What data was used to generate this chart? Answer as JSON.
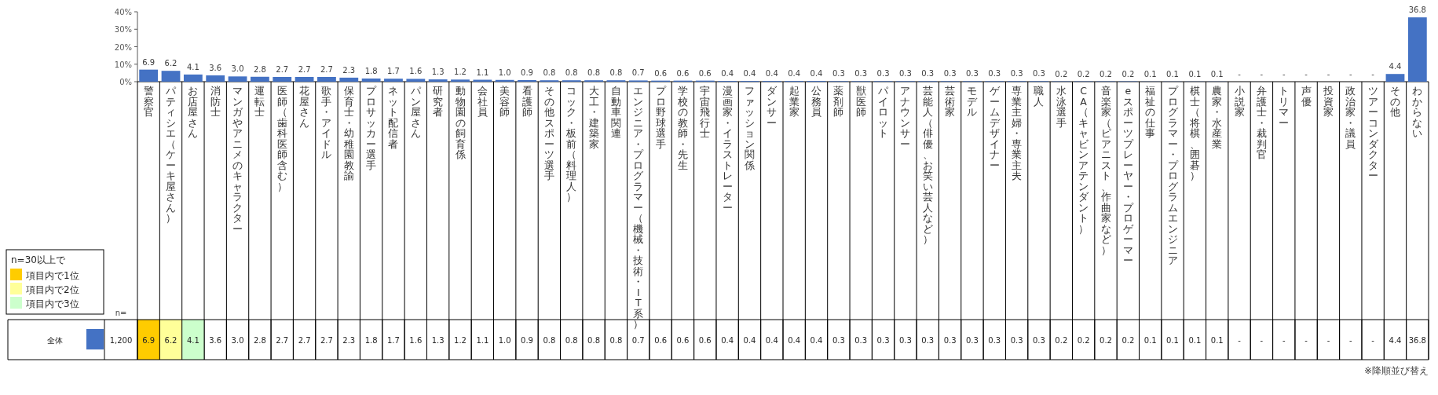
{
  "chart_data": {
    "type": "bar",
    "ylim": [
      0,
      40
    ],
    "yticks": [
      {
        "value": 0,
        "label": "0%"
      },
      {
        "value": 10,
        "label": "10%"
      },
      {
        "value": 20,
        "label": "20%"
      },
      {
        "value": 30,
        "label": "30%"
      },
      {
        "value": 40,
        "label": "40%"
      }
    ],
    "grid": false,
    "legend": "bottom left",
    "legend_title": "n=30以上で",
    "categories": [
      "警察官",
      "パティシエ（ケーキ屋さん）",
      "お店屋さん",
      "消防士",
      "マンガやアニメのキャラクター",
      "運転士",
      "医師（歯科医師含む）",
      "花屋さん",
      "歌手・アイドル",
      "保育士・幼稚園教諭",
      "プロサッカー選手",
      "ネット配信者",
      "パン屋さん",
      "研究者",
      "動物園の飼育係",
      "会社員",
      "美容師",
      "看護師",
      "その他スポーツ選手",
      "コック・板前（料理人）",
      "大工・建築家",
      "自動車関連",
      "エンジニア・プログラマー（機械・技術・IT系）",
      "プロ野球選手",
      "学校の教師・先生",
      "宇宙飛行士",
      "漫画家・イラストレーター",
      "ファッション関係",
      "ダンサー",
      "起業家",
      "公務員",
      "薬剤師",
      "獣医師",
      "パイロット",
      "アナウンサー",
      "芸能人（俳優、お笑い芸人など）",
      "芸術家",
      "モデル",
      "ゲームデザイナー",
      "専業主婦・専業主夫",
      "職人",
      "水泳選手",
      "CA（キャビンアテンダント）",
      "音楽家（ピアニスト、作曲家など）",
      "eスポーツプレーヤー・プロゲーマー",
      "福祉の仕事",
      "プログラマー・プログラムエンジニア",
      "棋士（将棋、囲碁）",
      "農家・水産業",
      "小説家",
      "弁護士・裁判官",
      "トリマー",
      "声優",
      "投資家",
      "政治家・議員",
      "ツアーコンダクター",
      "その他",
      "わからない"
    ],
    "series": [
      {
        "name": "全体",
        "color": "#4472c4",
        "values": [
          6.9,
          6.2,
          4.1,
          3.6,
          3.0,
          2.8,
          2.7,
          2.7,
          2.7,
          2.3,
          1.8,
          1.7,
          1.6,
          1.3,
          1.2,
          1.1,
          1.0,
          0.9,
          0.8,
          0.8,
          0.8,
          0.8,
          0.7,
          0.6,
          0.6,
          0.6,
          0.4,
          0.4,
          0.4,
          0.4,
          0.4,
          0.3,
          0.3,
          0.3,
          0.3,
          0.3,
          0.3,
          0.3,
          0.3,
          0.3,
          0.3,
          0.2,
          0.2,
          0.2,
          0.2,
          0.1,
          0.1,
          0.1,
          0.1,
          null,
          null,
          null,
          null,
          null,
          null,
          null,
          4.4,
          36.8
        ],
        "value_labels": [
          "6.9",
          "6.2",
          "4.1",
          "3.6",
          "3.0",
          "2.8",
          "2.7",
          "2.7",
          "2.7",
          "2.3",
          "1.8",
          "1.7",
          "1.6",
          "1.3",
          "1.2",
          "1.1",
          "1.0",
          "0.9",
          "0.8",
          "0.8",
          "0.8",
          "0.8",
          "0.7",
          "0.6",
          "0.6",
          "0.6",
          "0.4",
          "0.4",
          "0.4",
          "0.4",
          "0.4",
          "0.3",
          "0.3",
          "0.3",
          "0.3",
          "0.3",
          "0.3",
          "0.3",
          "0.3",
          "0.3",
          "0.3",
          "0.2",
          "0.2",
          "0.2",
          "0.2",
          "0.1",
          "0.1",
          "0.1",
          "0.1",
          "-",
          "-",
          "-",
          "-",
          "-",
          "-",
          "-",
          "4.4",
          "36.8"
        ]
      }
    ],
    "annotations": [
      "項目内で1位",
      "項目内で2位",
      "項目内で3位",
      "n=",
      "1,200",
      "※降順並び替え"
    ]
  }
}
